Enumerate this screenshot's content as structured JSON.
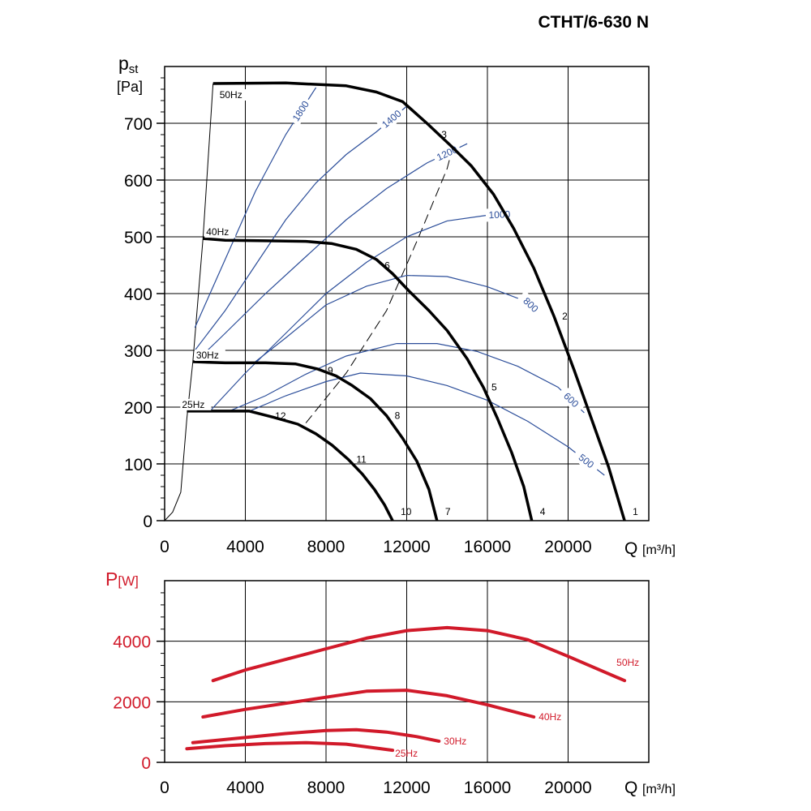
{
  "title": "CTHT/6-630 N",
  "colors": {
    "fan_curve": "#000000",
    "rpm_line": "#2c4e9a",
    "power_curve": "#d11a2a"
  },
  "chart_data": [
    {
      "type": "line",
      "x_axis": {
        "symbol": "Q",
        "unit": "[m³/h]",
        "ticks": [
          0,
          4000,
          8000,
          12000,
          16000,
          20000
        ],
        "range": [
          0,
          24000
        ]
      },
      "y_axis": {
        "symbol_main": "p",
        "symbol_sub": "st",
        "unit": "[Pa]",
        "ticks": [
          0,
          100,
          200,
          300,
          400,
          500,
          600,
          700
        ],
        "range": [
          0,
          800
        ]
      },
      "grid": true,
      "series": [
        {
          "name": "50Hz",
          "points": [
            [
              2400,
              770
            ],
            [
              6000,
              771
            ],
            [
              9000,
              766
            ],
            [
              10500,
              755
            ],
            [
              11800,
              738
            ],
            [
              13000,
              700
            ],
            [
              14200,
              660
            ],
            [
              15200,
              625
            ],
            [
              16300,
              575
            ],
            [
              17300,
              515
            ],
            [
              18300,
              445
            ],
            [
              19300,
              360
            ],
            [
              20300,
              265
            ],
            [
              21200,
              175
            ],
            [
              22000,
              95
            ],
            [
              22800,
              0
            ]
          ]
        },
        {
          "name": "40Hz",
          "points": [
            [
              1900,
              497
            ],
            [
              3000,
              494
            ],
            [
              5000,
              493
            ],
            [
              7000,
              492
            ],
            [
              8300,
              488
            ],
            [
              9500,
              478
            ],
            [
              10500,
              460
            ],
            [
              11300,
              435
            ],
            [
              12100,
              405
            ],
            [
              13100,
              370
            ],
            [
              14000,
              335
            ],
            [
              15000,
              285
            ],
            [
              15800,
              235
            ],
            [
              16500,
              180
            ],
            [
              17200,
              120
            ],
            [
              17800,
              60
            ],
            [
              18200,
              0
            ]
          ]
        },
        {
          "name": "30Hz",
          "points": [
            [
              1400,
              280
            ],
            [
              3000,
              278
            ],
            [
              5000,
              278
            ],
            [
              6500,
              276
            ],
            [
              7600,
              267
            ],
            [
              8500,
              255
            ],
            [
              9300,
              238
            ],
            [
              10200,
              215
            ],
            [
              11000,
              185
            ],
            [
              11800,
              145
            ],
            [
              12500,
              105
            ],
            [
              13100,
              55
            ],
            [
              13500,
              0
            ]
          ]
        },
        {
          "name": "25Hz",
          "points": [
            [
              1100,
              193
            ],
            [
              2500,
              193
            ],
            [
              4200,
              193
            ],
            [
              5400,
              182
            ],
            [
              6600,
              170
            ],
            [
              7500,
              153
            ],
            [
              8300,
              133
            ],
            [
              9100,
              108
            ],
            [
              9800,
              82
            ],
            [
              10400,
              55
            ],
            [
              10900,
              28
            ],
            [
              11300,
              0
            ]
          ]
        }
      ],
      "rpm_lines": [
        {
          "label": "1800",
          "points": [
            [
              1500,
              340
            ],
            [
              3000,
              460
            ],
            [
              4500,
              580
            ],
            [
              6000,
              680
            ],
            [
              7500,
              763
            ]
          ]
        },
        {
          "label": "1400",
          "points": [
            [
              1500,
              300
            ],
            [
              3000,
              370
            ],
            [
              4500,
              450
            ],
            [
              6000,
              530
            ],
            [
              7500,
              595
            ],
            [
              9000,
              645
            ],
            [
              10500,
              685
            ],
            [
              12000,
              730
            ]
          ]
        },
        {
          "label": "1200",
          "points": [
            [
              1600,
              282
            ],
            [
              3000,
              330
            ],
            [
              5000,
              400
            ],
            [
              7000,
              465
            ],
            [
              9000,
              530
            ],
            [
              11000,
              585
            ],
            [
              13000,
              630
            ],
            [
              15000,
              664
            ]
          ]
        },
        {
          "label": "1000",
          "points": [
            [
              2300,
              195
            ],
            [
              4000,
              260
            ],
            [
              6000,
              330
            ],
            [
              8000,
              400
            ],
            [
              10000,
              455
            ],
            [
              12000,
              500
            ],
            [
              14000,
              528
            ],
            [
              16000,
              538
            ],
            [
              17200,
              540
            ]
          ]
        },
        {
          "label": "800",
          "points": [
            [
              4500,
              280
            ],
            [
              6000,
              322
            ],
            [
              8000,
              380
            ],
            [
              10000,
              413
            ],
            [
              12000,
              432
            ],
            [
              14000,
              430
            ],
            [
              16000,
              412
            ],
            [
              18000,
              385
            ],
            [
              18300,
              375
            ]
          ]
        },
        {
          "label": "600",
          "points": [
            [
              3200,
              193
            ],
            [
              5000,
              220
            ],
            [
              7000,
              258
            ],
            [
              9000,
              290
            ],
            [
              11500,
              312
            ],
            [
              13500,
              312
            ],
            [
              15500,
              298
            ],
            [
              17500,
              272
            ],
            [
              19500,
              235
            ],
            [
              20800,
              190
            ]
          ]
        },
        {
          "label": "500",
          "points": [
            [
              4200,
              193
            ],
            [
              6000,
              220
            ],
            [
              8000,
              245
            ],
            [
              9700,
              260
            ],
            [
              12000,
              255
            ],
            [
              14000,
              238
            ],
            [
              16000,
              212
            ],
            [
              18000,
              175
            ],
            [
              20000,
              130
            ],
            [
              21800,
              80
            ]
          ]
        }
      ],
      "system_lines": [
        {
          "style": "solid",
          "points": [
            [
              0,
              0
            ],
            [
              400,
              15
            ],
            [
              800,
              50
            ],
            [
              1100,
              180
            ],
            [
              1400,
              280
            ],
            [
              1900,
              497
            ],
            [
              2400,
              770
            ]
          ]
        },
        {
          "style": "dashed",
          "points": [
            [
              7000,
              172
            ],
            [
              9000,
              260
            ],
            [
              11000,
              370
            ],
            [
              12600,
              500
            ],
            [
              14000,
              620
            ],
            [
              14300,
              660
            ]
          ]
        }
      ],
      "point_labels": [
        {
          "text": "1",
          "x": 22800,
          "y": 0
        },
        {
          "text": "2",
          "x": 19300,
          "y": 360
        },
        {
          "text": "3",
          "x": 14200,
          "y": 660
        },
        {
          "text": "4",
          "x": 18200,
          "y": 0
        },
        {
          "text": "5",
          "x": 15800,
          "y": 235
        },
        {
          "text": "6",
          "x": 11300,
          "y": 435
        },
        {
          "text": "7",
          "x": 13500,
          "y": 0
        },
        {
          "text": "8",
          "x": 11000,
          "y": 185
        },
        {
          "text": "9",
          "x": 8000,
          "y": 260
        },
        {
          "text": "10",
          "x": 11300,
          "y": 0
        },
        {
          "text": "11",
          "x": 9100,
          "y": 108
        },
        {
          "text": "12",
          "x": 6600,
          "y": 170
        }
      ]
    },
    {
      "type": "line",
      "x_axis": {
        "symbol": "Q",
        "unit": "[m³/h]",
        "ticks": [
          0,
          4000,
          8000,
          12000,
          16000,
          20000
        ],
        "range": [
          0,
          24000
        ]
      },
      "y_axis": {
        "symbol": "P",
        "unit": "[W]",
        "ticks": [
          0,
          2000,
          4000
        ],
        "range": [
          0,
          6000
        ]
      },
      "grid": true,
      "series": [
        {
          "name": "50Hz",
          "points": [
            [
              2400,
              2700
            ],
            [
              4000,
              3050
            ],
            [
              6000,
              3400
            ],
            [
              8000,
              3750
            ],
            [
              10000,
              4100
            ],
            [
              12000,
              4350
            ],
            [
              14000,
              4450
            ],
            [
              16000,
              4350
            ],
            [
              18000,
              4050
            ],
            [
              20000,
              3500
            ],
            [
              22800,
              2700
            ]
          ]
        },
        {
          "name": "40Hz",
          "points": [
            [
              1900,
              1500
            ],
            [
              4000,
              1750
            ],
            [
              6000,
              1950
            ],
            [
              8000,
              2150
            ],
            [
              10000,
              2350
            ],
            [
              12000,
              2380
            ],
            [
              14000,
              2200
            ],
            [
              16000,
              1900
            ],
            [
              18300,
              1500
            ]
          ]
        },
        {
          "name": "30Hz",
          "points": [
            [
              1400,
              650
            ],
            [
              4000,
              820
            ],
            [
              6000,
              950
            ],
            [
              8000,
              1050
            ],
            [
              9500,
              1080
            ],
            [
              11000,
              1000
            ],
            [
              12500,
              850
            ],
            [
              13600,
              700
            ]
          ]
        },
        {
          "name": "25Hz",
          "points": [
            [
              1100,
              450
            ],
            [
              3000,
              550
            ],
            [
              5000,
              620
            ],
            [
              7000,
              650
            ],
            [
              9000,
              600
            ],
            [
              11300,
              400
            ]
          ]
        }
      ]
    }
  ]
}
